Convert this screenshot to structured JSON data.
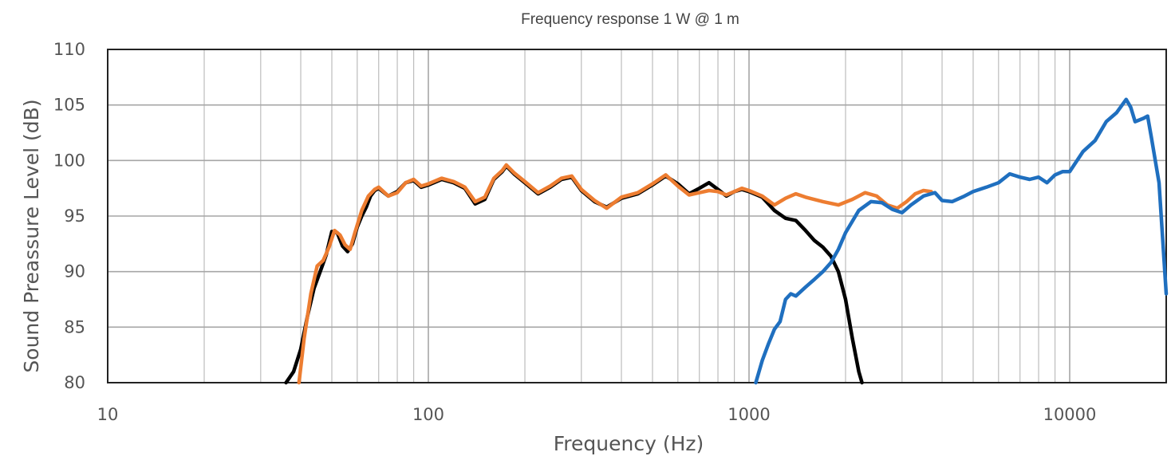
{
  "chart_data": {
    "type": "line",
    "title": "Frequency response 1 W @ 1 m",
    "xlabel": "Frequency (Hz)",
    "ylabel": "Sound Preassure Level (dB)",
    "xscale": "log",
    "xlim": [
      10,
      20000
    ],
    "ylim": [
      80,
      110
    ],
    "grid": true,
    "legend": "none",
    "x_tick_labels": [
      "10",
      "100",
      "1000",
      "10000"
    ],
    "y_tick_labels": [
      "80",
      "85",
      "90",
      "95",
      "100",
      "105",
      "110"
    ],
    "series": [
      {
        "color": "#000000",
        "points": [
          [
            36,
            80
          ],
          [
            37,
            80.5
          ],
          [
            38,
            81
          ],
          [
            40,
            83
          ],
          [
            42,
            86
          ],
          [
            44,
            88.5
          ],
          [
            46,
            90
          ],
          [
            48,
            91.5
          ],
          [
            50,
            93.6
          ],
          [
            52,
            93.5
          ],
          [
            54,
            92.3
          ],
          [
            56,
            91.8
          ],
          [
            58,
            92.5
          ],
          [
            60,
            94
          ],
          [
            62,
            95
          ],
          [
            64,
            95.8
          ],
          [
            66,
            96.8
          ],
          [
            68,
            97.3
          ],
          [
            70,
            97.5
          ],
          [
            75,
            96.8
          ],
          [
            80,
            97.2
          ],
          [
            85,
            98
          ],
          [
            90,
            98.2
          ],
          [
            95,
            97.6
          ],
          [
            100,
            97.8
          ],
          [
            110,
            98.3
          ],
          [
            120,
            98
          ],
          [
            130,
            97.5
          ],
          [
            140,
            96.1
          ],
          [
            150,
            96.5
          ],
          [
            160,
            98.3
          ],
          [
            170,
            99
          ],
          [
            175,
            99.5
          ],
          [
            185,
            98.8
          ],
          [
            200,
            98
          ],
          [
            220,
            97
          ],
          [
            240,
            97.6
          ],
          [
            260,
            98.3
          ],
          [
            280,
            98.5
          ],
          [
            300,
            97.3
          ],
          [
            330,
            96.3
          ],
          [
            360,
            95.8
          ],
          [
            400,
            96.6
          ],
          [
            450,
            97
          ],
          [
            500,
            97.8
          ],
          [
            550,
            98.6
          ],
          [
            600,
            97.9
          ],
          [
            650,
            97
          ],
          [
            700,
            97.5
          ],
          [
            750,
            98
          ],
          [
            800,
            97.4
          ],
          [
            850,
            96.8
          ],
          [
            900,
            97.2
          ],
          [
            950,
            97.4
          ],
          [
            1000,
            97.2
          ],
          [
            1100,
            96.7
          ],
          [
            1200,
            95.5
          ],
          [
            1300,
            94.8
          ],
          [
            1400,
            94.6
          ],
          [
            1500,
            93.7
          ],
          [
            1600,
            92.8
          ],
          [
            1700,
            92.2
          ],
          [
            1800,
            91.4
          ],
          [
            1900,
            90
          ],
          [
            2000,
            87.5
          ],
          [
            2100,
            84
          ],
          [
            2200,
            81
          ],
          [
            2250,
            80
          ]
        ]
      },
      {
        "color": "#ed7d31",
        "points": [
          [
            39.5,
            80
          ],
          [
            41,
            84
          ],
          [
            43,
            88
          ],
          [
            45,
            90.5
          ],
          [
            47,
            91
          ],
          [
            49,
            92.2
          ],
          [
            51,
            93.7
          ],
          [
            53,
            93.3
          ],
          [
            55,
            92.4
          ],
          [
            57,
            92
          ],
          [
            59,
            93.5
          ],
          [
            62,
            95.5
          ],
          [
            65,
            96.8
          ],
          [
            68,
            97.4
          ],
          [
            70,
            97.6
          ],
          [
            75,
            96.8
          ],
          [
            80,
            97.1
          ],
          [
            85,
            98
          ],
          [
            90,
            98.3
          ],
          [
            95,
            97.7
          ],
          [
            100,
            97.9
          ],
          [
            110,
            98.4
          ],
          [
            120,
            98.1
          ],
          [
            130,
            97.6
          ],
          [
            140,
            96.3
          ],
          [
            150,
            96.7
          ],
          [
            160,
            98.4
          ],
          [
            170,
            99.1
          ],
          [
            175,
            99.6
          ],
          [
            185,
            98.9
          ],
          [
            200,
            98.1
          ],
          [
            220,
            97.1
          ],
          [
            240,
            97.7
          ],
          [
            260,
            98.4
          ],
          [
            280,
            98.6
          ],
          [
            300,
            97.4
          ],
          [
            330,
            96.4
          ],
          [
            360,
            95.7
          ],
          [
            400,
            96.7
          ],
          [
            450,
            97.1
          ],
          [
            500,
            97.9
          ],
          [
            550,
            98.7
          ],
          [
            600,
            97.7
          ],
          [
            650,
            96.9
          ],
          [
            700,
            97.1
          ],
          [
            750,
            97.3
          ],
          [
            800,
            97.2
          ],
          [
            850,
            96.9
          ],
          [
            900,
            97.2
          ],
          [
            950,
            97.5
          ],
          [
            1000,
            97.3
          ],
          [
            1100,
            96.8
          ],
          [
            1200,
            96
          ],
          [
            1300,
            96.6
          ],
          [
            1400,
            97
          ],
          [
            1500,
            96.7
          ],
          [
            1700,
            96.3
          ],
          [
            1900,
            96
          ],
          [
            2100,
            96.5
          ],
          [
            2300,
            97.1
          ],
          [
            2500,
            96.8
          ],
          [
            2700,
            96
          ],
          [
            2900,
            95.7
          ],
          [
            3100,
            96.3
          ],
          [
            3300,
            97
          ],
          [
            3500,
            97.3
          ],
          [
            3700,
            97.2
          ]
        ]
      },
      {
        "color": "#1f6fbf",
        "points": [
          [
            1050,
            80
          ],
          [
            1100,
            82
          ],
          [
            1150,
            83.5
          ],
          [
            1200,
            84.8
          ],
          [
            1250,
            85.5
          ],
          [
            1300,
            87.5
          ],
          [
            1350,
            88
          ],
          [
            1400,
            87.8
          ],
          [
            1500,
            88.6
          ],
          [
            1600,
            89.3
          ],
          [
            1700,
            90
          ],
          [
            1800,
            90.8
          ],
          [
            1900,
            92
          ],
          [
            2000,
            93.5
          ],
          [
            2200,
            95.5
          ],
          [
            2400,
            96.3
          ],
          [
            2600,
            96.2
          ],
          [
            2800,
            95.6
          ],
          [
            3000,
            95.3
          ],
          [
            3200,
            96
          ],
          [
            3500,
            96.8
          ],
          [
            3800,
            97.1
          ],
          [
            4000,
            96.4
          ],
          [
            4300,
            96.3
          ],
          [
            4700,
            96.8
          ],
          [
            5000,
            97.2
          ],
          [
            5500,
            97.6
          ],
          [
            6000,
            98
          ],
          [
            6500,
            98.8
          ],
          [
            7000,
            98.5
          ],
          [
            7500,
            98.3
          ],
          [
            8000,
            98.5
          ],
          [
            8500,
            98
          ],
          [
            9000,
            98.7
          ],
          [
            9500,
            99
          ],
          [
            10000,
            99
          ],
          [
            11000,
            100.8
          ],
          [
            12000,
            101.8
          ],
          [
            13000,
            103.5
          ],
          [
            14000,
            104.3
          ],
          [
            15000,
            105.5
          ],
          [
            15500,
            104.8
          ],
          [
            16000,
            103.5
          ],
          [
            17000,
            103.8
          ],
          [
            17500,
            104
          ],
          [
            18000,
            102
          ],
          [
            19000,
            98
          ],
          [
            20000,
            88
          ]
        ]
      }
    ]
  }
}
